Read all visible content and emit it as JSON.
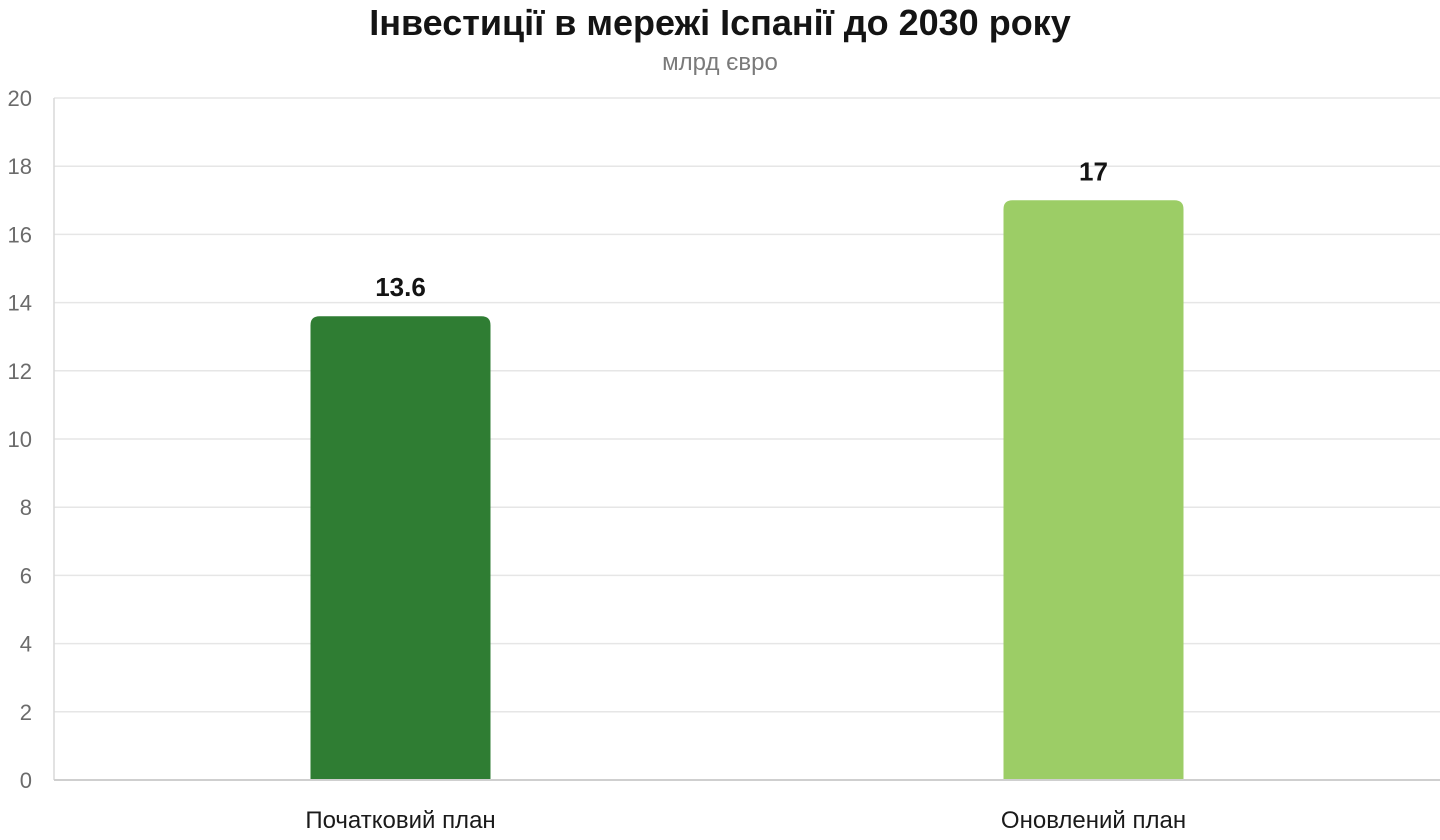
{
  "chart_data": {
    "type": "bar",
    "title": "Інвестиції в мережі Іспанії до 2030 року",
    "subtitle": "млрд євро",
    "categories": [
      "Початковий план",
      "Оновлений план"
    ],
    "values": [
      13.6,
      17
    ],
    "data_labels": [
      "13.6",
      "17"
    ],
    "colors": [
      "#2f7d33",
      "#9ccd66"
    ],
    "ylim": [
      0,
      20
    ],
    "yticks": [
      0,
      2,
      4,
      6,
      8,
      10,
      12,
      14,
      16,
      18,
      20
    ],
    "grid": true,
    "legend": "none"
  }
}
